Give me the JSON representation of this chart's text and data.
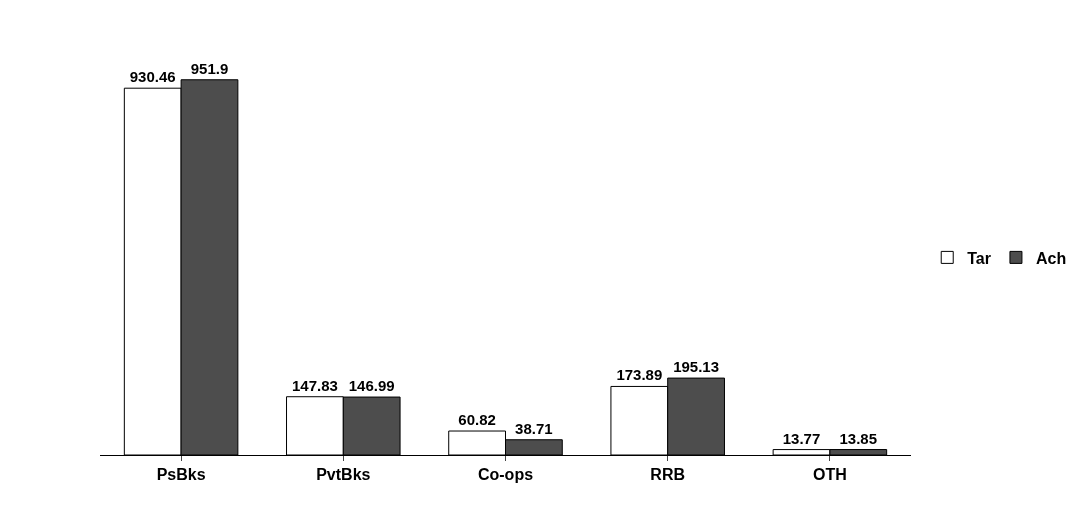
{
  "chart_data": {
    "type": "bar",
    "categories": [
      "PsBks",
      "PvtBks",
      "Co-ops",
      "RRB",
      "OTH"
    ],
    "series": [
      {
        "name": "Tar",
        "color": "#ffffff",
        "values": [
          930.46,
          147.83,
          60.82,
          173.89,
          13.77
        ]
      },
      {
        "name": "Ach",
        "color": "#4d4d4d",
        "values": [
          951.9,
          146.99,
          38.71,
          195.13,
          13.85
        ]
      }
    ],
    "data_labels": true,
    "legend": "right"
  }
}
